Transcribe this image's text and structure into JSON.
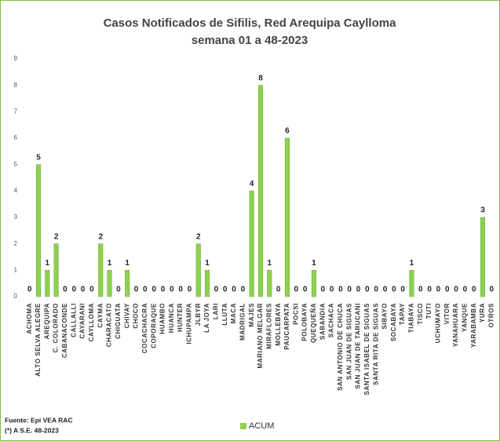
{
  "chart_data": {
    "type": "bar",
    "title": [
      "Casos Notificados de Sifilis, Red Arequipa Caylloma",
      "semana 01 a 48-2023"
    ],
    "categories": [
      "ACHOMA",
      "ALTO SELVA ALEGRE",
      "AREQUIPA",
      "C. COLORADO",
      "CABANACONDE",
      "CALLALLI",
      "CAYARANI",
      "CAYLLOMA",
      "CAYMA",
      "CHARACATO",
      "CHIGUATA",
      "CHIVAY",
      "CHOCO",
      "COCACHACRA",
      "COPORAQUE",
      "HUAMBO",
      "HUANCA",
      "HUNTER",
      "ICHUPAMPA",
      "JLBYR",
      "LA JOYA",
      "LARI",
      "LLUTA",
      "MACA",
      "MADRIGAL",
      "MAJES",
      "MARIANO MELGAR",
      "MIRAFLORES",
      "MOLLEBAYA",
      "PAUCARPATA",
      "POCSI",
      "POLOBAYA",
      "QUEQUEÑA",
      "SABANDIA",
      "SACHACA",
      "SAN ANTONIO DE CHUCA",
      "SAN JUAN DE SIGUAS",
      "SAN JUAN DE TARUCANI",
      "SANTA ISABEL DE SIGUAS",
      "SANTA RITA DE SIGUAS",
      "SIBAYO",
      "SOCABAYA",
      "TAPAY",
      "TIABAYA",
      "TISCO",
      "TUTI",
      "UCHUMAYO",
      "VITOR",
      "YANAHUARA",
      "YANQUE",
      "YARABAMBA",
      "YURA",
      "OTROS"
    ],
    "series": [
      {
        "name": "ACUM",
        "color": "#8fd14f",
        "values": [
          0,
          5,
          1,
          2,
          0,
          0,
          0,
          0,
          2,
          1,
          0,
          1,
          0,
          0,
          0,
          0,
          0,
          0,
          0,
          2,
          1,
          0,
          0,
          0,
          0,
          4,
          8,
          1,
          0,
          6,
          0,
          0,
          1,
          0,
          0,
          0,
          0,
          0,
          0,
          0,
          0,
          0,
          0,
          1,
          0,
          0,
          0,
          0,
          0,
          0,
          0,
          3,
          0
        ]
      }
    ],
    "ylim": [
      0,
      9
    ],
    "yticks": [
      0,
      1,
      2,
      3,
      4,
      5,
      6,
      7,
      8,
      9
    ],
    "legend": "bottom",
    "footnotes": [
      "Fuente: Epi VEA RAC",
      "(*) A S.E. 48-2023"
    ]
  }
}
